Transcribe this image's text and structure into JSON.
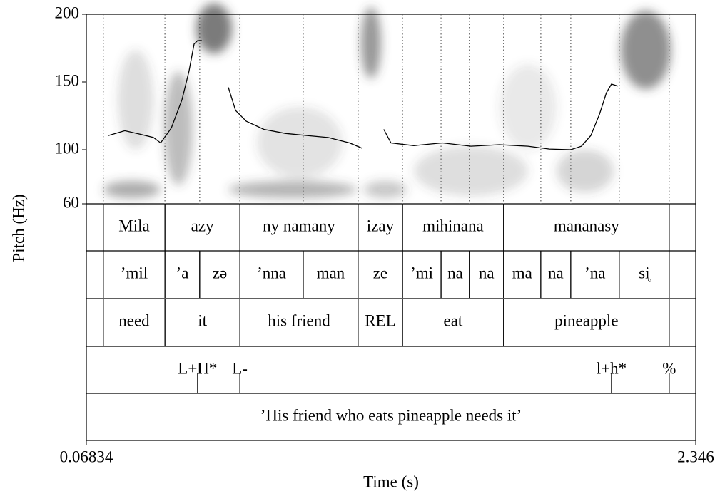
{
  "chart_data": {
    "type": "line",
    "y_label": "Pitch (Hz)",
    "x_label": "Time (s)",
    "xlim": [
      0.06834,
      2.346
    ],
    "xticks": [
      0.06834,
      2.346
    ],
    "ylim": [
      60,
      200
    ],
    "yticks": [
      60,
      100,
      150,
      200
    ],
    "color": "#000000",
    "x": [
      0.151,
      0.212,
      0.266,
      0.319,
      0.346,
      0.386,
      0.426,
      0.452,
      0.471,
      0.484,
      0.5,
      0.55,
      0.599,
      0.626,
      0.666,
      0.732,
      0.812,
      0.892,
      0.972,
      1.052,
      1.1,
      1.14,
      1.18,
      1.207,
      1.292,
      1.399,
      1.506,
      1.612,
      1.719,
      1.799,
      1.879,
      1.919,
      1.954,
      1.986,
      2.012,
      2.031,
      2.055
    ],
    "values": [
      110.5,
      114,
      111.6,
      109,
      105,
      116,
      137,
      158,
      178,
      180.5,
      180.5,
      null,
      146,
      129,
      121,
      115,
      112,
      110.5,
      109,
      105,
      101,
      null,
      115,
      105,
      103,
      105,
      102.6,
      103.7,
      102.6,
      100.5,
      100,
      102.6,
      110.5,
      126,
      142,
      148.4,
      147
    ],
    "tiers": [
      {
        "intervals": [
          {
            "text": "Mila",
            "start": 0.132,
            "end": 0.362
          },
          {
            "text": "azy",
            "start": 0.362,
            "end": 0.642
          },
          {
            "text": "ny namany",
            "start": 0.642,
            "end": 1.084
          },
          {
            "text": "izay",
            "start": 1.084,
            "end": 1.25
          },
          {
            "text": "mihinana",
            "start": 1.25,
            "end": 1.628
          },
          {
            "text": "mananasy",
            "start": 1.628,
            "end": 2.247
          }
        ]
      },
      {
        "intervals": [
          {
            "text": "’mil",
            "start": 0.132,
            "end": 0.362
          },
          {
            "text": "’a",
            "start": 0.362,
            "end": 0.492
          },
          {
            "text": "zə",
            "start": 0.492,
            "end": 0.642
          },
          {
            "text": "’nna",
            "start": 0.642,
            "end": 0.879
          },
          {
            "text": "man",
            "start": 0.879,
            "end": 1.084
          },
          {
            "text": "ze",
            "start": 1.084,
            "end": 1.25
          },
          {
            "text": "’mi",
            "start": 1.25,
            "end": 1.394
          },
          {
            "text": "na",
            "start": 1.394,
            "end": 1.5
          },
          {
            "text": "na",
            "start": 1.5,
            "end": 1.628
          },
          {
            "text": "ma",
            "start": 1.628,
            "end": 1.767
          },
          {
            "text": "na",
            "start": 1.767,
            "end": 1.879
          },
          {
            "text": "’na",
            "start": 1.879,
            "end": 2.06
          },
          {
            "text": "si̥",
            "start": 2.06,
            "end": 2.247
          }
        ]
      },
      {
        "intervals": [
          {
            "text": "need",
            "start": 0.132,
            "end": 0.362
          },
          {
            "text": "it",
            "start": 0.362,
            "end": 0.642
          },
          {
            "text": "his friend",
            "start": 0.642,
            "end": 1.084
          },
          {
            "text": "REL",
            "start": 1.084,
            "end": 1.25
          },
          {
            "text": "eat",
            "start": 1.25,
            "end": 1.628
          },
          {
            "text": "pineapple",
            "start": 1.628,
            "end": 2.247
          }
        ]
      }
    ],
    "tones": [
      {
        "text": "L+H*",
        "time": 0.484
      },
      {
        "text": "L-",
        "time": 0.642
      },
      {
        "text": "l+h*",
        "time": 2.031
      },
      {
        "text": "%",
        "time": 2.247
      }
    ],
    "translation": "’His friend who eats pineapple needs it’"
  }
}
